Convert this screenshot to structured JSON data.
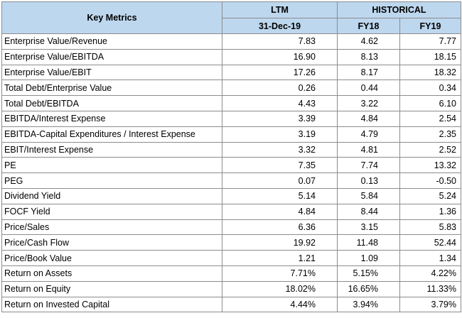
{
  "header": {
    "key_metrics": "Key Metrics",
    "ltm": "LTM",
    "historical": "HISTORICAL",
    "ltm_date": "31-Dec-19",
    "fy18": "FY18",
    "fy19": "FY19"
  },
  "rows": [
    {
      "name": "Enterprise Value/Revenue",
      "ltm": "7.83",
      "fy18": "4.62",
      "fy19": "7.77"
    },
    {
      "name": "Enterprise Value/EBITDA",
      "ltm": "16.90",
      "fy18": "8.13",
      "fy19": "18.15"
    },
    {
      "name": "Enterprise Value/EBIT",
      "ltm": "17.26",
      "fy18": "8.17",
      "fy19": "18.32"
    },
    {
      "name": "Total Debt/Enterprise Value",
      "ltm": "0.26",
      "fy18": "0.44",
      "fy19": "0.34"
    },
    {
      "name": "Total Debt/EBITDA",
      "ltm": "4.43",
      "fy18": "3.22",
      "fy19": "6.10"
    },
    {
      "name": "EBITDA/Interest Expense",
      "ltm": "3.39",
      "fy18": "4.84",
      "fy19": "2.54"
    },
    {
      "name": "EBITDA-Capital Expenditures / Interest Expense",
      "ltm": "3.19",
      "fy18": "4.79",
      "fy19": "2.35"
    },
    {
      "name": "EBIT/Interest Expense",
      "ltm": "3.32",
      "fy18": "4.81",
      "fy19": "2.52"
    },
    {
      "name": "PE",
      "ltm": "7.35",
      "fy18": "7.74",
      "fy19": "13.32"
    },
    {
      "name": "PEG",
      "ltm": "0.07",
      "fy18": "0.13",
      "fy19": "-0.50"
    },
    {
      "name": "Dividend Yield",
      "ltm": "5.14",
      "fy18": "5.84",
      "fy19": "5.24"
    },
    {
      "name": "FOCF Yield",
      "ltm": "4.84",
      "fy18": "8.44",
      "fy19": "1.36"
    },
    {
      "name": "Price/Sales",
      "ltm": "6.36",
      "fy18": "3.15",
      "fy19": "5.83"
    },
    {
      "name": "Price/Cash Flow",
      "ltm": "19.92",
      "fy18": "11.48",
      "fy19": "52.44"
    },
    {
      "name": "Price/Book Value",
      "ltm": "1.21",
      "fy18": "1.09",
      "fy19": "1.34"
    },
    {
      "name": "Return on Assets",
      "ltm": "7.71%",
      "fy18": "5.15%",
      "fy19": "4.22%"
    },
    {
      "name": "Return on Equity",
      "ltm": "18.02%",
      "fy18": "16.65%",
      "fy19": "11.33%"
    },
    {
      "name": "Return on Invested Capital",
      "ltm": "4.44%",
      "fy18": "3.94%",
      "fy19": "3.79%"
    }
  ],
  "colors": {
    "header_bg": "#bdd7ee",
    "border": "#8c8c8c"
  }
}
